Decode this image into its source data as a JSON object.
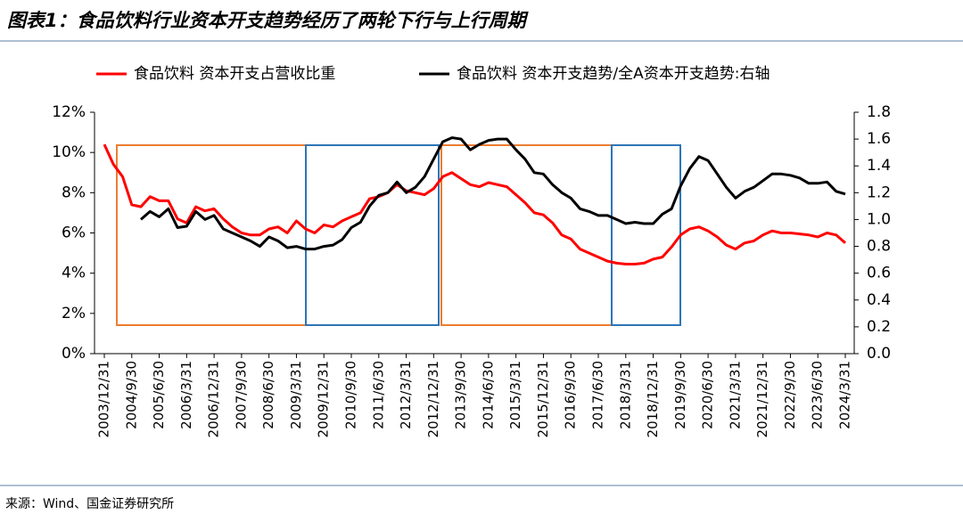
{
  "chart_data": {
    "type": "line",
    "title": "图表1：食品饮料行业资本开支趋势经历了两轮下行与上行周期",
    "source": "来源：Wind、国金证券研究所",
    "categories": [
      "2003/12/31",
      null,
      null,
      "2004/9/30",
      null,
      null,
      "2005/6/30",
      null,
      null,
      "2006/3/31",
      null,
      null,
      "2006/12/31",
      null,
      null,
      "2007/9/30",
      null,
      null,
      "2008/6/30",
      null,
      null,
      "2009/3/31",
      null,
      null,
      "2009/12/31",
      null,
      null,
      "2010/9/30",
      null,
      null,
      "2011/6/30",
      null,
      null,
      "2012/3/31",
      null,
      null,
      "2012/12/31",
      null,
      null,
      "2013/9/30",
      null,
      null,
      "2014/6/30",
      null,
      null,
      "2015/3/31",
      null,
      null,
      "2015/12/31",
      null,
      null,
      "2016/9/30",
      null,
      null,
      "2017/6/30",
      null,
      null,
      "2018/3/31",
      null,
      null,
      "2018/12/31",
      null,
      null,
      "2019/9/30",
      null,
      null,
      "2020/6/30",
      null,
      null,
      "2021/3/31",
      null,
      null,
      "2021/12/31",
      null,
      null,
      "2022/9/30",
      null,
      null,
      "2023/6/30",
      null,
      null,
      "2024/3/31"
    ],
    "series": [
      {
        "name": "食品饮料 资本开支占营收比重",
        "color": "#ff0000",
        "axis": "y",
        "values": [
          10.4,
          9.4,
          8.8,
          7.4,
          7.3,
          7.8,
          7.6,
          7.6,
          6.7,
          6.5,
          7.3,
          7.1,
          7.2,
          6.7,
          6.3,
          6.0,
          5.9,
          5.9,
          6.2,
          6.3,
          6.0,
          6.6,
          6.2,
          6.0,
          6.4,
          6.3,
          6.6,
          6.8,
          7.0,
          7.7,
          7.8,
          8.0,
          8.4,
          8.1,
          8.0,
          7.9,
          8.2,
          8.8,
          9.0,
          8.7,
          8.4,
          8.3,
          8.5,
          8.4,
          8.3,
          7.9,
          7.5,
          7.0,
          6.9,
          6.5,
          5.9,
          5.7,
          5.2,
          5.0,
          4.8,
          4.6,
          4.5,
          4.45,
          4.45,
          4.5,
          4.7,
          4.8,
          5.3,
          5.9,
          6.2,
          6.3,
          6.1,
          5.8,
          5.4,
          5.2,
          5.5,
          5.6,
          5.9,
          6.1,
          6.0,
          6.0,
          5.95,
          5.9,
          5.8,
          6.0,
          5.9,
          5.5
        ]
      },
      {
        "name": "食品饮料 资本开支趋势/全A资本开支趋势:右轴",
        "color": "#000000",
        "axis": "y2",
        "values": [
          null,
          null,
          null,
          null,
          1.0,
          1.06,
          1.02,
          1.08,
          0.94,
          0.95,
          1.06,
          1.0,
          1.03,
          0.93,
          0.9,
          0.87,
          0.84,
          0.8,
          0.87,
          0.84,
          0.79,
          0.8,
          0.78,
          0.78,
          0.8,
          0.81,
          0.85,
          0.94,
          0.98,
          1.1,
          1.18,
          1.2,
          1.28,
          1.2,
          1.24,
          1.32,
          1.45,
          1.58,
          1.61,
          1.6,
          1.52,
          1.56,
          1.59,
          1.6,
          1.6,
          1.52,
          1.45,
          1.35,
          1.34,
          1.26,
          1.2,
          1.16,
          1.08,
          1.06,
          1.03,
          1.03,
          1.0,
          0.97,
          0.98,
          0.97,
          0.97,
          1.04,
          1.08,
          1.25,
          1.38,
          1.47,
          1.44,
          1.34,
          1.24,
          1.16,
          1.21,
          1.24,
          1.29,
          1.34,
          1.34,
          1.33,
          1.31,
          1.27,
          1.27,
          1.28,
          1.21,
          1.19
        ]
      }
    ],
    "ylim": [
      0,
      12
    ],
    "yticks": [
      {
        "value": 0,
        "label": "0%"
      },
      {
        "value": 2,
        "label": "2%"
      },
      {
        "value": 4,
        "label": "4%"
      },
      {
        "value": 6,
        "label": "6%"
      },
      {
        "value": 8,
        "label": "8%"
      },
      {
        "value": 10,
        "label": "10%"
      },
      {
        "value": 12,
        "label": "12%"
      }
    ],
    "y2lim": [
      0,
      1.8
    ],
    "y2ticks": [
      {
        "value": 0,
        "label": "0.0"
      },
      0.2,
      0.4,
      0.6,
      0.8,
      {
        "value": 1,
        "label": "1.0"
      },
      1.2,
      1.4,
      1.6,
      1.8
    ],
    "legend": "top"
  }
}
